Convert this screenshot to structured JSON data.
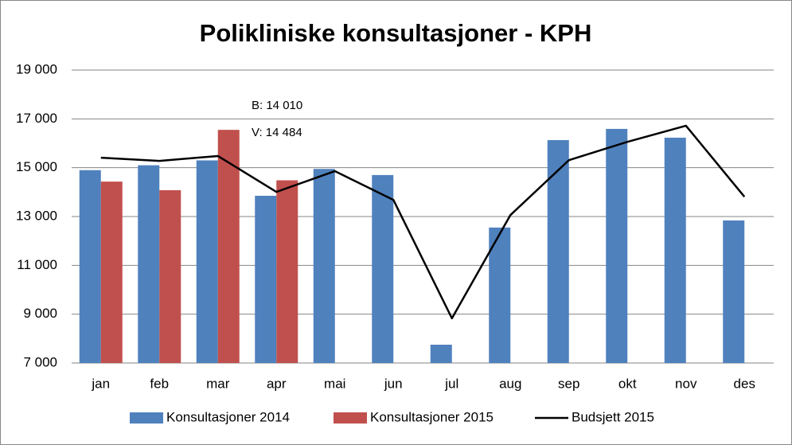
{
  "chart_data": {
    "type": "bar",
    "title": "Polikliniske konsultasjoner - KPH",
    "categories": [
      "jan",
      "feb",
      "mar",
      "apr",
      "mai",
      "jun",
      "jul",
      "aug",
      "sep",
      "okt",
      "nov",
      "des"
    ],
    "series": [
      {
        "name": "Konsultasjoner 2014",
        "type": "bar",
        "color": "#4f81bd",
        "values": [
          14900,
          15100,
          15300,
          13850,
          14950,
          14700,
          7750,
          12550,
          16130,
          16590,
          16230,
          12840
        ]
      },
      {
        "name": "Konsultasjoner 2015",
        "type": "bar",
        "color": "#c0504d",
        "values": [
          14430,
          14080,
          16550,
          14484,
          null,
          null,
          null,
          null,
          null,
          null,
          null,
          null
        ]
      },
      {
        "name": "Budsjett 2015",
        "type": "line",
        "color": "#000000",
        "values": [
          15410,
          15280,
          15480,
          14010,
          14860,
          13680,
          8830,
          13060,
          15310,
          16060,
          16720,
          13810
        ]
      }
    ],
    "annotations": [
      "B: 14 010",
      "V: 14 484"
    ],
    "ylim": [
      7000,
      19000
    ],
    "yticks": [
      {
        "value": 7000,
        "label": "7 000"
      },
      {
        "value": 9000,
        "label": "9 000"
      },
      {
        "value": 11000,
        "label": "11 000"
      },
      {
        "value": 13000,
        "label": "13 000"
      },
      {
        "value": 15000,
        "label": "15 000"
      },
      {
        "value": 17000,
        "label": "17 000"
      },
      {
        "value": 19000,
        "label": "19 000"
      }
    ],
    "grid": true,
    "legend": "bottom"
  }
}
